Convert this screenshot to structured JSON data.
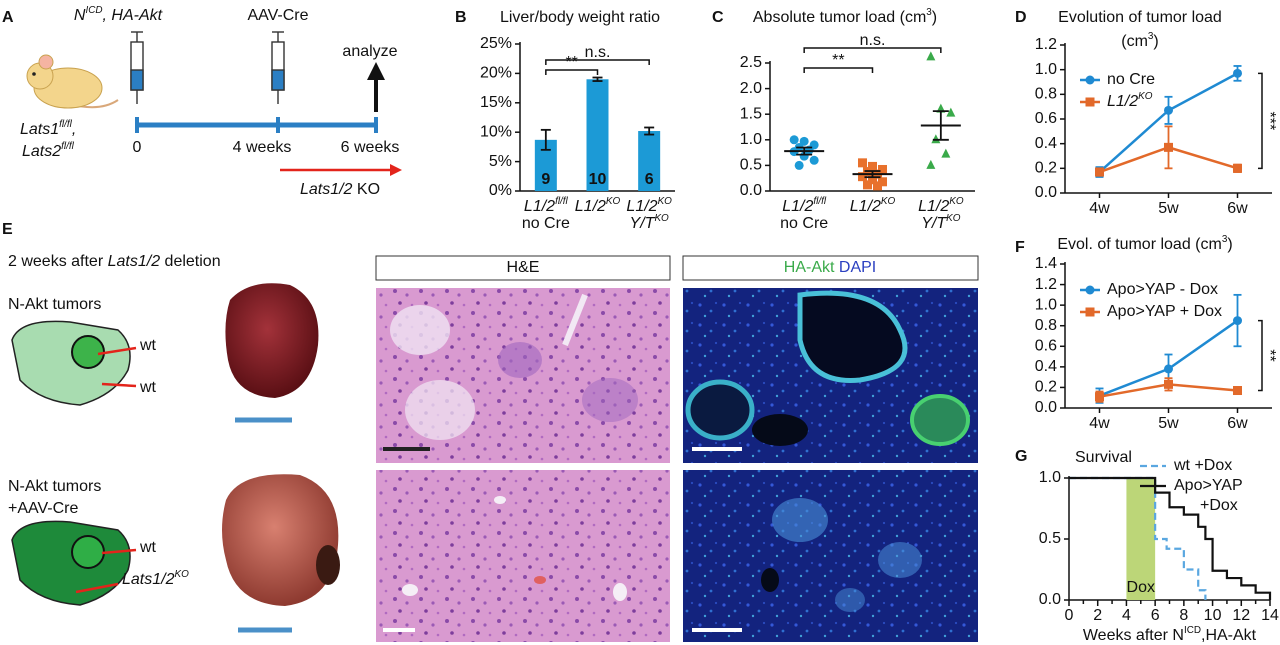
{
  "panels": [
    "A",
    "B",
    "C",
    "D",
    "E",
    "F",
    "G"
  ],
  "timeline": {
    "injections": [
      [
        {
          "text": "N",
          "style": "italic"
        },
        {
          "text": "ICD",
          "style": "italic-sup"
        },
        {
          "text": ", HA-Akt",
          "style": "italic"
        }
      ],
      "AAV-Cre"
    ],
    "analyze": "analyze",
    "genotype": [
      [
        {
          "text": "Lats1",
          "style": "italic"
        },
        {
          "text": "fl/fl",
          "style": "italic-sup"
        },
        {
          "text": ",",
          "style": "italic"
        }
      ],
      [
        {
          "text": "Lats2",
          "style": "italic"
        },
        {
          "text": "fl/fl",
          "style": "italic-sup"
        }
      ]
    ],
    "timepoints": [
      "0",
      "4 weeks",
      "6 weeks"
    ],
    "knockout": [
      {
        "text": "Lats1/2",
        "style": "italic"
      },
      " KO"
    ]
  },
  "histology": {
    "title": [
      "2 weeks after ",
      {
        "text": "Lats1/2",
        "style": "italic"
      },
      " deletion"
    ],
    "columns": [
      "H&E",
      [
        {
          "text": "HA-Akt ",
          "color": "#3aaa4a"
        },
        {
          "text": "DAPI",
          "color": "#2a3fc0"
        }
      ]
    ],
    "rows": [
      {
        "label": [
          "N-Akt tumors"
        ],
        "markers": [
          "wt",
          "wt"
        ]
      },
      {
        "label": [
          "N-Akt tumors",
          "+AAV-Cre"
        ],
        "markers": [
          "wt",
          [
            {
              "text": "Lats1/2",
              "style": "italic"
            },
            {
              "text": "KO",
              "style": "italic-sup"
            }
          ]
        ]
      }
    ]
  },
  "chart_data": [
    {
      "type": "bar",
      "title": [
        "Liver/body weight ratio"
      ],
      "categories": [
        [
          [
            {
              "text": "L1/2",
              "style": "italic"
            },
            {
              "text": "fl/fl",
              "style": "italic-sup"
            }
          ],
          "no Cre"
        ],
        [
          [
            {
              "text": "L1/2",
              "style": "italic"
            },
            {
              "text": "KO",
              "style": "italic-sup"
            }
          ]
        ],
        [
          [
            {
              "text": "L1/2",
              "style": "italic"
            },
            {
              "text": "KO",
              "style": "italic-sup"
            }
          ],
          [
            {
              "text": "Y/T",
              "style": "italic"
            },
            {
              "text": "KO",
              "style": "italic-sup"
            }
          ]
        ]
      ],
      "values": [
        8.7,
        19,
        10.2
      ],
      "errors": [
        1.7,
        0.3,
        0.6
      ],
      "counts": [
        9,
        10,
        6
      ],
      "color": "#1c9ad6",
      "ylim": [
        0,
        25
      ],
      "yticks": [
        {
          "value": 0,
          "label": "0%"
        },
        {
          "value": 5,
          "label": "5%"
        },
        {
          "value": 10,
          "label": "10%"
        },
        {
          "value": 15,
          "label": "15%"
        },
        {
          "value": 20,
          "label": "20%"
        },
        {
          "value": 25,
          "label": "25%"
        }
      ],
      "significance": [
        {
          "pair": [
            0,
            1
          ],
          "label": "**"
        },
        {
          "pair": [
            0,
            2
          ],
          "label": "n.s."
        }
      ]
    },
    {
      "type": "dot",
      "title": [
        [
          "Absolute tumor load (cm",
          {
            "text": "3",
            "style": "sup"
          },
          ")"
        ]
      ],
      "categories": [
        [
          [
            {
              "text": "L1/2",
              "style": "italic"
            },
            {
              "text": "fl/fl",
              "style": "italic-sup"
            }
          ],
          "no Cre"
        ],
        [
          [
            {
              "text": "L1/2",
              "style": "italic"
            },
            {
              "text": "KO",
              "style": "italic-sup"
            }
          ]
        ],
        [
          [
            {
              "text": "L1/2",
              "style": "italic"
            },
            {
              "text": "KO",
              "style": "italic-sup"
            }
          ],
          [
            {
              "text": "Y/T",
              "style": "italic"
            },
            {
              "text": "KO",
              "style": "italic-sup"
            }
          ]
        ]
      ],
      "points": [
        [
          1.0,
          0.97,
          0.9,
          0.85,
          0.8,
          0.77,
          0.68,
          0.6,
          0.5
        ],
        [
          0.55,
          0.48,
          0.42,
          0.38,
          0.33,
          0.28,
          0.22,
          0.18,
          0.12,
          0.1
        ],
        [
          2.62,
          1.6,
          1.52,
          1.0,
          0.72,
          0.5
        ]
      ],
      "means": [
        0.78,
        0.33,
        1.28
      ],
      "errors": [
        0.07,
        0.06,
        0.28
      ],
      "colors": [
        "#1c9ad6",
        "#e8712c",
        "#3aaa4a"
      ],
      "markers": [
        "circle",
        "square",
        "triangle"
      ],
      "ylim": [
        0,
        2.5
      ],
      "yticks": [
        {
          "value": 0,
          "label": "0.0"
        },
        0.5,
        {
          "value": 1,
          "label": "1.0"
        },
        1.5,
        {
          "value": 2,
          "label": "2.0"
        },
        2.5
      ],
      "significance": [
        {
          "pair": [
            0,
            1
          ],
          "label": "**"
        },
        {
          "pair": [
            0,
            2
          ],
          "label": "n.s."
        }
      ]
    },
    {
      "type": "line",
      "title": [
        "Evolution of tumor load",
        [
          "(cm",
          {
            "text": "3",
            "style": "sup"
          },
          ")"
        ]
      ],
      "categories": [
        "4w",
        "5w",
        "6w"
      ],
      "series": [
        {
          "name": "no Cre",
          "color": "#1f8ad2",
          "marker": "circle",
          "values": [
            0.17,
            0.67,
            0.97
          ],
          "errors": [
            0.04,
            0.11,
            0.06
          ]
        },
        {
          "name": [
            {
              "text": "L1/2",
              "style": "italic"
            },
            {
              "text": "KO",
              "style": "italic-sup"
            }
          ],
          "color": "#e2692a",
          "marker": "square",
          "values": [
            0.17,
            0.37,
            0.2
          ],
          "errors": [
            0.03,
            0.17,
            0.03
          ]
        }
      ],
      "ylim": [
        0,
        1.2
      ],
      "yticks": [
        {
          "value": 0,
          "label": "0.0"
        },
        0.2,
        0.4,
        0.6,
        0.8,
        {
          "value": 1,
          "label": "1.0"
        },
        1.2
      ],
      "significance": "***"
    },
    {
      "type": "line",
      "title": [
        [
          "Evol. of tumor load (cm",
          {
            "text": "3",
            "style": "sup"
          },
          ")"
        ]
      ],
      "categories": [
        "4w",
        "5w",
        "6w"
      ],
      "series": [
        {
          "name": "Apo>YAP - Dox",
          "color": "#1f8ad2",
          "marker": "circle",
          "values": [
            0.12,
            0.38,
            0.85
          ],
          "errors": [
            0.07,
            0.14,
            0.25
          ]
        },
        {
          "name": "Apo>YAP + Dox",
          "color": "#e2692a",
          "marker": "square",
          "values": [
            0.11,
            0.23,
            0.17
          ],
          "errors": [
            0.05,
            0.06,
            0.03
          ]
        }
      ],
      "ylim": [
        0,
        1.4
      ],
      "yticks": [
        {
          "value": 0,
          "label": "0.0"
        },
        0.2,
        0.4,
        0.6,
        0.8,
        {
          "value": 1,
          "label": "1.0"
        },
        1.2,
        1.4
      ],
      "significance": "**"
    },
    {
      "type": "step",
      "title": [
        "Survival"
      ],
      "x_label": [
        "Weeks after N",
        {
          "text": "ICD",
          "style": "sup"
        },
        ",HA-Akt"
      ],
      "series": [
        {
          "name": [
            "wt +Dox"
          ],
          "color": "#5aa7e0",
          "dash": true,
          "x": [
            0,
            6,
            6.8,
            8,
            9,
            9.5
          ],
          "values": [
            1,
            0.5,
            0.42,
            0.25,
            0.08,
            0
          ]
        },
        {
          "name": [
            "Apo>YAP",
            "+Dox"
          ],
          "color": "#111111",
          "dash": false,
          "x": [
            0,
            6,
            7,
            8,
            9,
            9.5,
            10,
            11,
            12,
            13,
            14
          ],
          "values": [
            1,
            0.88,
            0.76,
            0.7,
            0.6,
            0.5,
            0.24,
            0.18,
            0.12,
            0.06,
            0
          ]
        }
      ],
      "shade": {
        "from": 4,
        "to": 6,
        "label": "Dox",
        "color": "#bcd678"
      },
      "xlim": [
        0,
        14
      ],
      "xticks": [
        0,
        2,
        4,
        6,
        8,
        10,
        12,
        14
      ],
      "xminor_ticks": [
        1,
        3,
        5,
        7,
        9,
        11,
        13
      ],
      "ylim": [
        0,
        1
      ],
      "yticks": [
        {
          "value": 0,
          "label": "0.0"
        },
        0.5,
        {
          "value": 1,
          "label": "1.0"
        }
      ]
    }
  ]
}
